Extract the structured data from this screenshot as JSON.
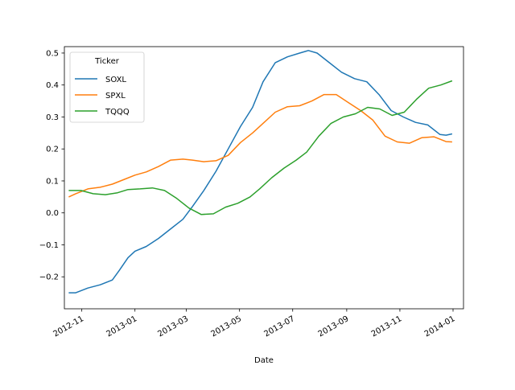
{
  "chart_data": {
    "type": "line",
    "xlabel": "Date",
    "ylabel": "",
    "title": "",
    "ylim": [
      -0.3,
      0.52
    ],
    "xlim": [
      "2012-10-12",
      "2014-01-13"
    ],
    "y_ticks": [
      -0.2,
      -0.1,
      0.0,
      0.1,
      0.2,
      0.3,
      0.4,
      0.5
    ],
    "y_tick_labels": [
      "−0.2",
      "−0.1",
      "0.0",
      "0.1",
      "0.2",
      "0.3",
      "0.4",
      "0.5"
    ],
    "x_ticks": [
      "2012-11-01",
      "2013-01-01",
      "2013-03-01",
      "2013-05-01",
      "2013-07-01",
      "2013-09-01",
      "2013-11-01",
      "2014-01-01"
    ],
    "x_tick_labels": [
      "2012-11",
      "2013-01",
      "2013-03",
      "2013-05",
      "2013-07",
      "2013-09",
      "2013-11",
      "2014-01"
    ],
    "legend": {
      "title": "Ticker",
      "position": "upper left"
    },
    "grid": false,
    "series": [
      {
        "name": "SOXL",
        "color": "#1f77b4",
        "points": [
          [
            "2012-10-17",
            -0.25
          ],
          [
            "2012-10-25",
            -0.25
          ],
          [
            "2012-11-08",
            -0.235
          ],
          [
            "2012-11-22",
            -0.225
          ],
          [
            "2012-12-06",
            -0.21
          ],
          [
            "2012-12-14",
            -0.18
          ],
          [
            "2012-12-24",
            -0.14
          ],
          [
            "2013-01-01",
            -0.12
          ],
          [
            "2013-01-14",
            -0.105
          ],
          [
            "2013-01-28",
            -0.08
          ],
          [
            "2013-02-11",
            -0.05
          ],
          [
            "2013-02-25",
            -0.02
          ],
          [
            "2013-03-08",
            0.02
          ],
          [
            "2013-03-21",
            0.07
          ],
          [
            "2013-04-04",
            0.13
          ],
          [
            "2013-04-18",
            0.2
          ],
          [
            "2013-05-02",
            0.27
          ],
          [
            "2013-05-16",
            0.33
          ],
          [
            "2013-05-28",
            0.41
          ],
          [
            "2013-06-11",
            0.47
          ],
          [
            "2013-06-25",
            0.488
          ],
          [
            "2013-07-09",
            0.5
          ],
          [
            "2013-07-19",
            0.508
          ],
          [
            "2013-07-29",
            0.5
          ],
          [
            "2013-08-12",
            0.47
          ],
          [
            "2013-08-26",
            0.44
          ],
          [
            "2013-09-10",
            0.42
          ],
          [
            "2013-09-24",
            0.41
          ],
          [
            "2013-10-08",
            0.37
          ],
          [
            "2013-10-22",
            0.32
          ],
          [
            "2013-11-05",
            0.3
          ],
          [
            "2013-11-19",
            0.283
          ],
          [
            "2013-12-03",
            0.275
          ],
          [
            "2013-12-17",
            0.245
          ],
          [
            "2013-12-24",
            0.243
          ],
          [
            "2013-12-31",
            0.247
          ]
        ]
      },
      {
        "name": "SPXL",
        "color": "#ff7f0e",
        "points": [
          [
            "2012-10-17",
            0.05
          ],
          [
            "2012-10-25",
            0.06
          ],
          [
            "2012-11-08",
            0.075
          ],
          [
            "2012-11-22",
            0.08
          ],
          [
            "2012-12-06",
            0.09
          ],
          [
            "2012-12-20",
            0.105
          ],
          [
            "2013-01-01",
            0.118
          ],
          [
            "2013-01-14",
            0.128
          ],
          [
            "2013-01-28",
            0.145
          ],
          [
            "2013-02-11",
            0.165
          ],
          [
            "2013-02-25",
            0.168
          ],
          [
            "2013-03-08",
            0.165
          ],
          [
            "2013-03-21",
            0.16
          ],
          [
            "2013-04-04",
            0.163
          ],
          [
            "2013-04-18",
            0.18
          ],
          [
            "2013-05-02",
            0.22
          ],
          [
            "2013-05-16",
            0.25
          ],
          [
            "2013-05-28",
            0.28
          ],
          [
            "2013-06-11",
            0.315
          ],
          [
            "2013-06-25",
            0.332
          ],
          [
            "2013-07-09",
            0.335
          ],
          [
            "2013-07-23",
            0.35
          ],
          [
            "2013-08-06",
            0.37
          ],
          [
            "2013-08-20",
            0.37
          ],
          [
            "2013-09-03",
            0.345
          ],
          [
            "2013-09-17",
            0.32
          ],
          [
            "2013-10-01",
            0.29
          ],
          [
            "2013-10-15",
            0.24
          ],
          [
            "2013-10-29",
            0.222
          ],
          [
            "2013-11-12",
            0.218
          ],
          [
            "2013-11-26",
            0.235
          ],
          [
            "2013-12-10",
            0.238
          ],
          [
            "2013-12-24",
            0.223
          ],
          [
            "2013-12-31",
            0.222
          ]
        ]
      },
      {
        "name": "TQQQ",
        "color": "#2ca02c",
        "points": [
          [
            "2012-10-17",
            0.07
          ],
          [
            "2012-10-31",
            0.07
          ],
          [
            "2012-11-14",
            0.06
          ],
          [
            "2012-11-28",
            0.057
          ],
          [
            "2012-12-12",
            0.063
          ],
          [
            "2012-12-24",
            0.073
          ],
          [
            "2013-01-07",
            0.075
          ],
          [
            "2013-01-21",
            0.078
          ],
          [
            "2013-02-04",
            0.07
          ],
          [
            "2013-02-18",
            0.045
          ],
          [
            "2013-03-04",
            0.015
          ],
          [
            "2013-03-18",
            -0.005
          ],
          [
            "2013-04-01",
            -0.003
          ],
          [
            "2013-04-15",
            0.018
          ],
          [
            "2013-04-29",
            0.03
          ],
          [
            "2013-05-13",
            0.05
          ],
          [
            "2013-05-24",
            0.075
          ],
          [
            "2013-06-07",
            0.11
          ],
          [
            "2013-06-21",
            0.14
          ],
          [
            "2013-07-05",
            0.165
          ],
          [
            "2013-07-17",
            0.19
          ],
          [
            "2013-07-31",
            0.24
          ],
          [
            "2013-08-14",
            0.28
          ],
          [
            "2013-08-28",
            0.3
          ],
          [
            "2013-09-11",
            0.31
          ],
          [
            "2013-09-25",
            0.33
          ],
          [
            "2013-10-09",
            0.325
          ],
          [
            "2013-10-23",
            0.305
          ],
          [
            "2013-11-06",
            0.315
          ],
          [
            "2013-11-20",
            0.355
          ],
          [
            "2013-12-04",
            0.39
          ],
          [
            "2013-12-18",
            0.4
          ],
          [
            "2013-12-31",
            0.413
          ]
        ]
      }
    ]
  }
}
